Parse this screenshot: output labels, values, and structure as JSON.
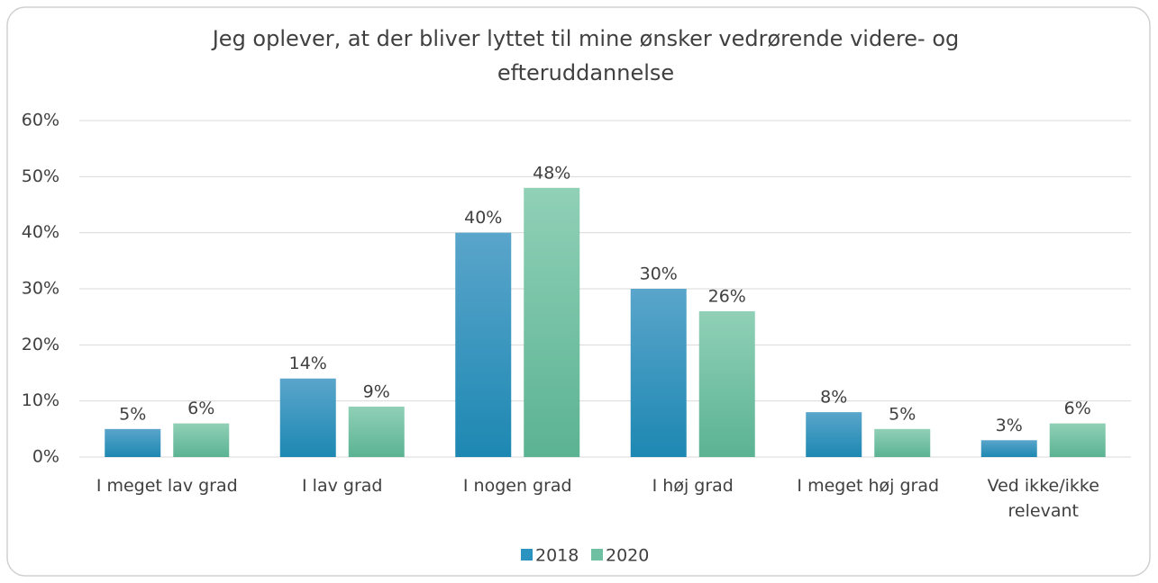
{
  "chart_data": {
    "type": "bar",
    "title": "Jeg oplever, at der bliver lyttet til mine ønsker vedrørende videre- og efteruddannelse",
    "categories": [
      "I meget lav grad",
      "I lav grad",
      "I nogen grad",
      "I høj grad",
      "I meget høj grad",
      "Ved ikke/ikke relevant"
    ],
    "series": [
      {
        "name": "2018",
        "color": "#2a93bf",
        "values": [
          5,
          14,
          40,
          30,
          8,
          3
        ],
        "value_labels": [
          "5%",
          "14%",
          "40%",
          "30%",
          "8%",
          "3%"
        ]
      },
      {
        "name": "2020",
        "color": "#6fc0a2",
        "values": [
          6,
          9,
          48,
          26,
          5,
          6
        ],
        "value_labels": [
          "6%",
          "9%",
          "48%",
          "26%",
          "5%",
          "6%"
        ]
      }
    ],
    "ylim": [
      0,
      60
    ],
    "yticks": [
      {
        "value": 0,
        "label": "0%"
      },
      {
        "value": 10,
        "label": "10%"
      },
      {
        "value": 20,
        "label": "20%"
      },
      {
        "value": 30,
        "label": "30%"
      },
      {
        "value": 40,
        "label": "40%"
      },
      {
        "value": 50,
        "label": "50%"
      },
      {
        "value": 60,
        "label": "60%"
      }
    ],
    "grid": true,
    "legend": "bottom"
  }
}
